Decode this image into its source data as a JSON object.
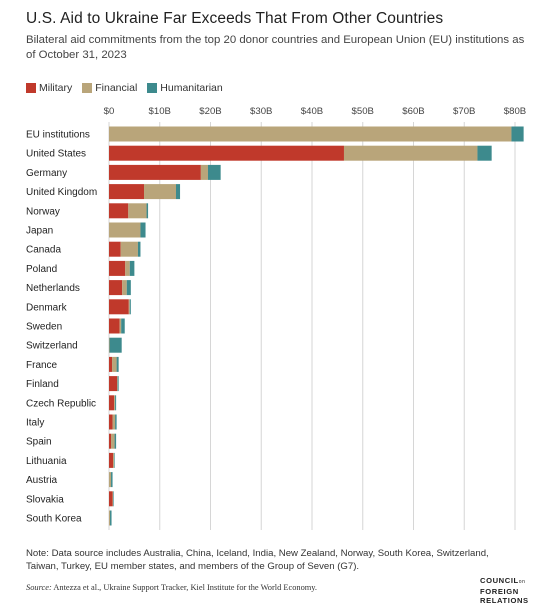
{
  "title": "U.S. Aid to Ukraine Far Exceeds That From Other Countries",
  "subtitle": "Bilateral aid commitments from the top 20 donor countries and European Union (EU) institutions as of October 31, 2023",
  "colors": {
    "military": "#c0392b",
    "financial": "#b9a57a",
    "humanitarian": "#3d8a8d",
    "grid": "#d6d6d6",
    "text": "#1f1f1f"
  },
  "legend": [
    {
      "label": "Military",
      "color": "#c0392b"
    },
    {
      "label": "Financial",
      "color": "#b9a57a"
    },
    {
      "label": "Humanitarian",
      "color": "#3d8a8d"
    }
  ],
  "chart_data": {
    "type": "bar",
    "orientation": "horizontal",
    "stacked": true,
    "xlim": [
      0,
      80
    ],
    "x_ticks": [
      0,
      10,
      20,
      30,
      40,
      50,
      60,
      70,
      80
    ],
    "x_tick_labels": [
      "$0",
      "$10B",
      "$20B",
      "$30B",
      "$40B",
      "$50B",
      "$60B",
      "$70B",
      "$80B"
    ],
    "grid": true,
    "legend_position": "top-left",
    "categories": [
      "EU institutions",
      "United States",
      "Germany",
      "United Kingdom",
      "Norway",
      "Japan",
      "Canada",
      "Poland",
      "Netherlands",
      "Denmark",
      "Sweden",
      "Switzerland",
      "France",
      "Finland",
      "Czech Republic",
      "Italy",
      "Spain",
      "Lithuania",
      "Austria",
      "Slovakia",
      "South Korea"
    ],
    "series": [
      {
        "name": "Military",
        "color": "#c0392b",
        "values": [
          0,
          46.3,
          18.1,
          6.9,
          3.8,
          0,
          2.3,
          3.2,
          2.6,
          3.9,
          2.1,
          0,
          0.6,
          1.6,
          1.0,
          0.7,
          0.4,
          0.8,
          0,
          0.7,
          0
        ]
      },
      {
        "name": "Financial",
        "color": "#b9a57a",
        "values": [
          79.3,
          26.3,
          1.4,
          6.3,
          3.6,
          6.2,
          3.4,
          0.9,
          0.9,
          0.2,
          0.3,
          0.1,
          0.9,
          0.1,
          0.2,
          0.5,
          0.7,
          0.2,
          0.4,
          0.1,
          0.2
        ]
      },
      {
        "name": "Humanitarian",
        "color": "#3d8a8d",
        "values": [
          2.4,
          2.8,
          2.5,
          0.8,
          0.3,
          1.0,
          0.5,
          0.9,
          0.8,
          0.2,
          0.7,
          2.4,
          0.4,
          0.2,
          0.2,
          0.3,
          0.3,
          0.1,
          0.3,
          0.1,
          0.3
        ]
      }
    ]
  },
  "note": "Note: Data source includes Australia, China, Iceland, India, New Zealand, Norway, South Korea, Switzerland, Taiwan, Turkey, EU member states, and members of the Group of Seven (G7).",
  "source": {
    "label": "Source:",
    "text": " Antezza et al., Ukraine Support Tracker, Kiel Institute for the World Economy."
  },
  "logo": {
    "line1": "COUNCIL",
    "line1_suffix": "on",
    "line2": "FOREIGN",
    "line3": "RELATIONS"
  }
}
